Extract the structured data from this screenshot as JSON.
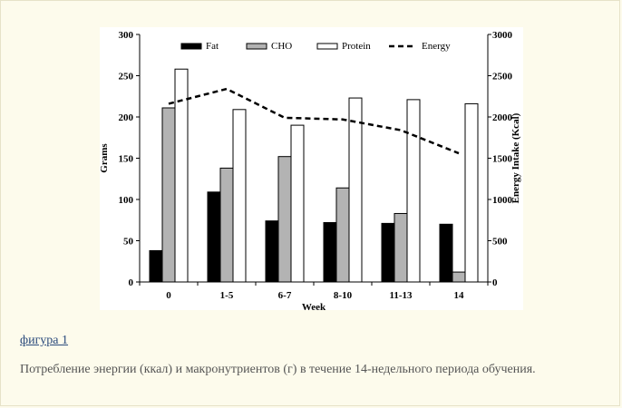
{
  "figure_link": "фигура 1",
  "caption": "Потребление энергии (ккал) и макронутриентов (г) в течение 14-недельного периода обучения.",
  "chart_data": {
    "type": "bar",
    "categories": [
      "0",
      "1-5",
      "6-7",
      "8-10",
      "11-13",
      "14"
    ],
    "series": [
      {
        "name": "Fat",
        "values": [
          38,
          109,
          74,
          72,
          71,
          70
        ],
        "color": "#000000"
      },
      {
        "name": "CHO",
        "values": [
          211,
          138,
          152,
          114,
          83,
          12
        ],
        "color": "#b3b3b3"
      },
      {
        "name": "Protein",
        "values": [
          258,
          209,
          190,
          223,
          221,
          216
        ],
        "color": "#ffffff"
      }
    ],
    "line_series": {
      "name": "Energy",
      "values": [
        2160,
        2340,
        1990,
        1970,
        1840,
        1560
      ],
      "axis": "right"
    },
    "xlabel": "Week",
    "ylabel": "Grams",
    "ylabel_right": "Energy Intake (Kcal)",
    "ylim": [
      0,
      300
    ],
    "yticks": [
      "0",
      "50",
      "100",
      "150",
      "200",
      "250",
      "300"
    ],
    "ylim_right": [
      0,
      3000
    ],
    "yticks_right": [
      "0",
      "500",
      "1000",
      "1500",
      "2000",
      "2500",
      "3000"
    ],
    "legend": [
      "Fat",
      "CHO",
      "Protein",
      "Energy"
    ]
  }
}
